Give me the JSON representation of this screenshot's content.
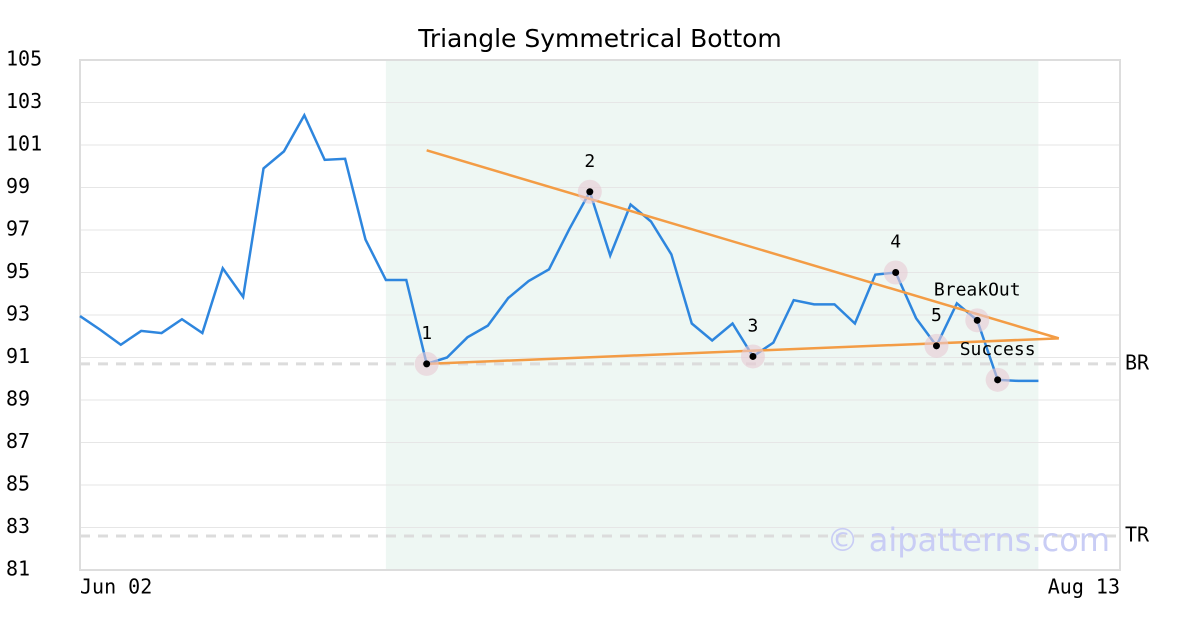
{
  "chart_data": {
    "type": "line",
    "title": "Triangle Symmetrical Bottom",
    "categories": [
      "Jun 02",
      null,
      null,
      null,
      null,
      null,
      null,
      null,
      null,
      null,
      null,
      null,
      null,
      null,
      null,
      null,
      null,
      null,
      null,
      null,
      null,
      null,
      null,
      null,
      null,
      null,
      null,
      null,
      null,
      null,
      null,
      null,
      null,
      null,
      null,
      null,
      null,
      null,
      null,
      null,
      null,
      null,
      null,
      null,
      null,
      null,
      null,
      null,
      null,
      null,
      null,
      "Aug 13"
    ],
    "series": [
      {
        "color": "#2e86de",
        "values": [
          92.95,
          92.3,
          91.6,
          92.25,
          92.15,
          92.8,
          92.15,
          95.2,
          93.85,
          99.9,
          100.7,
          102.4,
          100.3,
          100.35,
          96.55,
          94.65,
          94.65,
          90.7,
          91.0,
          91.95,
          92.5,
          93.8,
          94.6,
          95.15,
          97.05,
          98.8,
          95.8,
          98.2,
          97.4,
          95.85,
          92.6,
          91.8,
          92.6,
          91.05,
          91.7,
          93.7,
          93.5,
          93.5,
          92.6,
          94.9,
          95.0,
          92.85,
          91.55,
          93.55,
          92.75,
          89.95,
          89.9,
          89.9,
          null,
          null,
          null,
          null
        ]
      }
    ],
    "trendlines": [
      {
        "color": "#f39c45",
        "x": [
          17,
          48
        ],
        "values": [
          100.75,
          91.9
        ]
      },
      {
        "color": "#f39c45",
        "x": [
          17,
          48
        ],
        "values": [
          90.7,
          91.9
        ]
      }
    ],
    "highlight": {
      "x": [
        15,
        47
      ],
      "color": "#eef7f3"
    },
    "annotations": [
      {
        "label": "1",
        "x": 17,
        "value": 90.7
      },
      {
        "label": "2",
        "x": 25,
        "value": 98.8
      },
      {
        "label": "3",
        "x": 33,
        "value": 91.05
      },
      {
        "label": "4",
        "x": 40,
        "value": 95.0
      },
      {
        "label": "5",
        "x": 42,
        "value": 91.55
      },
      {
        "label": "BreakOut",
        "x": 44,
        "value": 92.75
      },
      {
        "label": "Success",
        "x": 45,
        "value": 89.95
      }
    ],
    "reference_lines": [
      {
        "label": "BR",
        "value": 90.7
      },
      {
        "label": "TR",
        "value": 82.6
      }
    ],
    "watermark": "© aipatterns.com",
    "ylim": [
      81,
      105
    ],
    "yticks": [
      81,
      83,
      85,
      87,
      89,
      91,
      93,
      95,
      97,
      99,
      101,
      103,
      105
    ],
    "grid": true
  }
}
